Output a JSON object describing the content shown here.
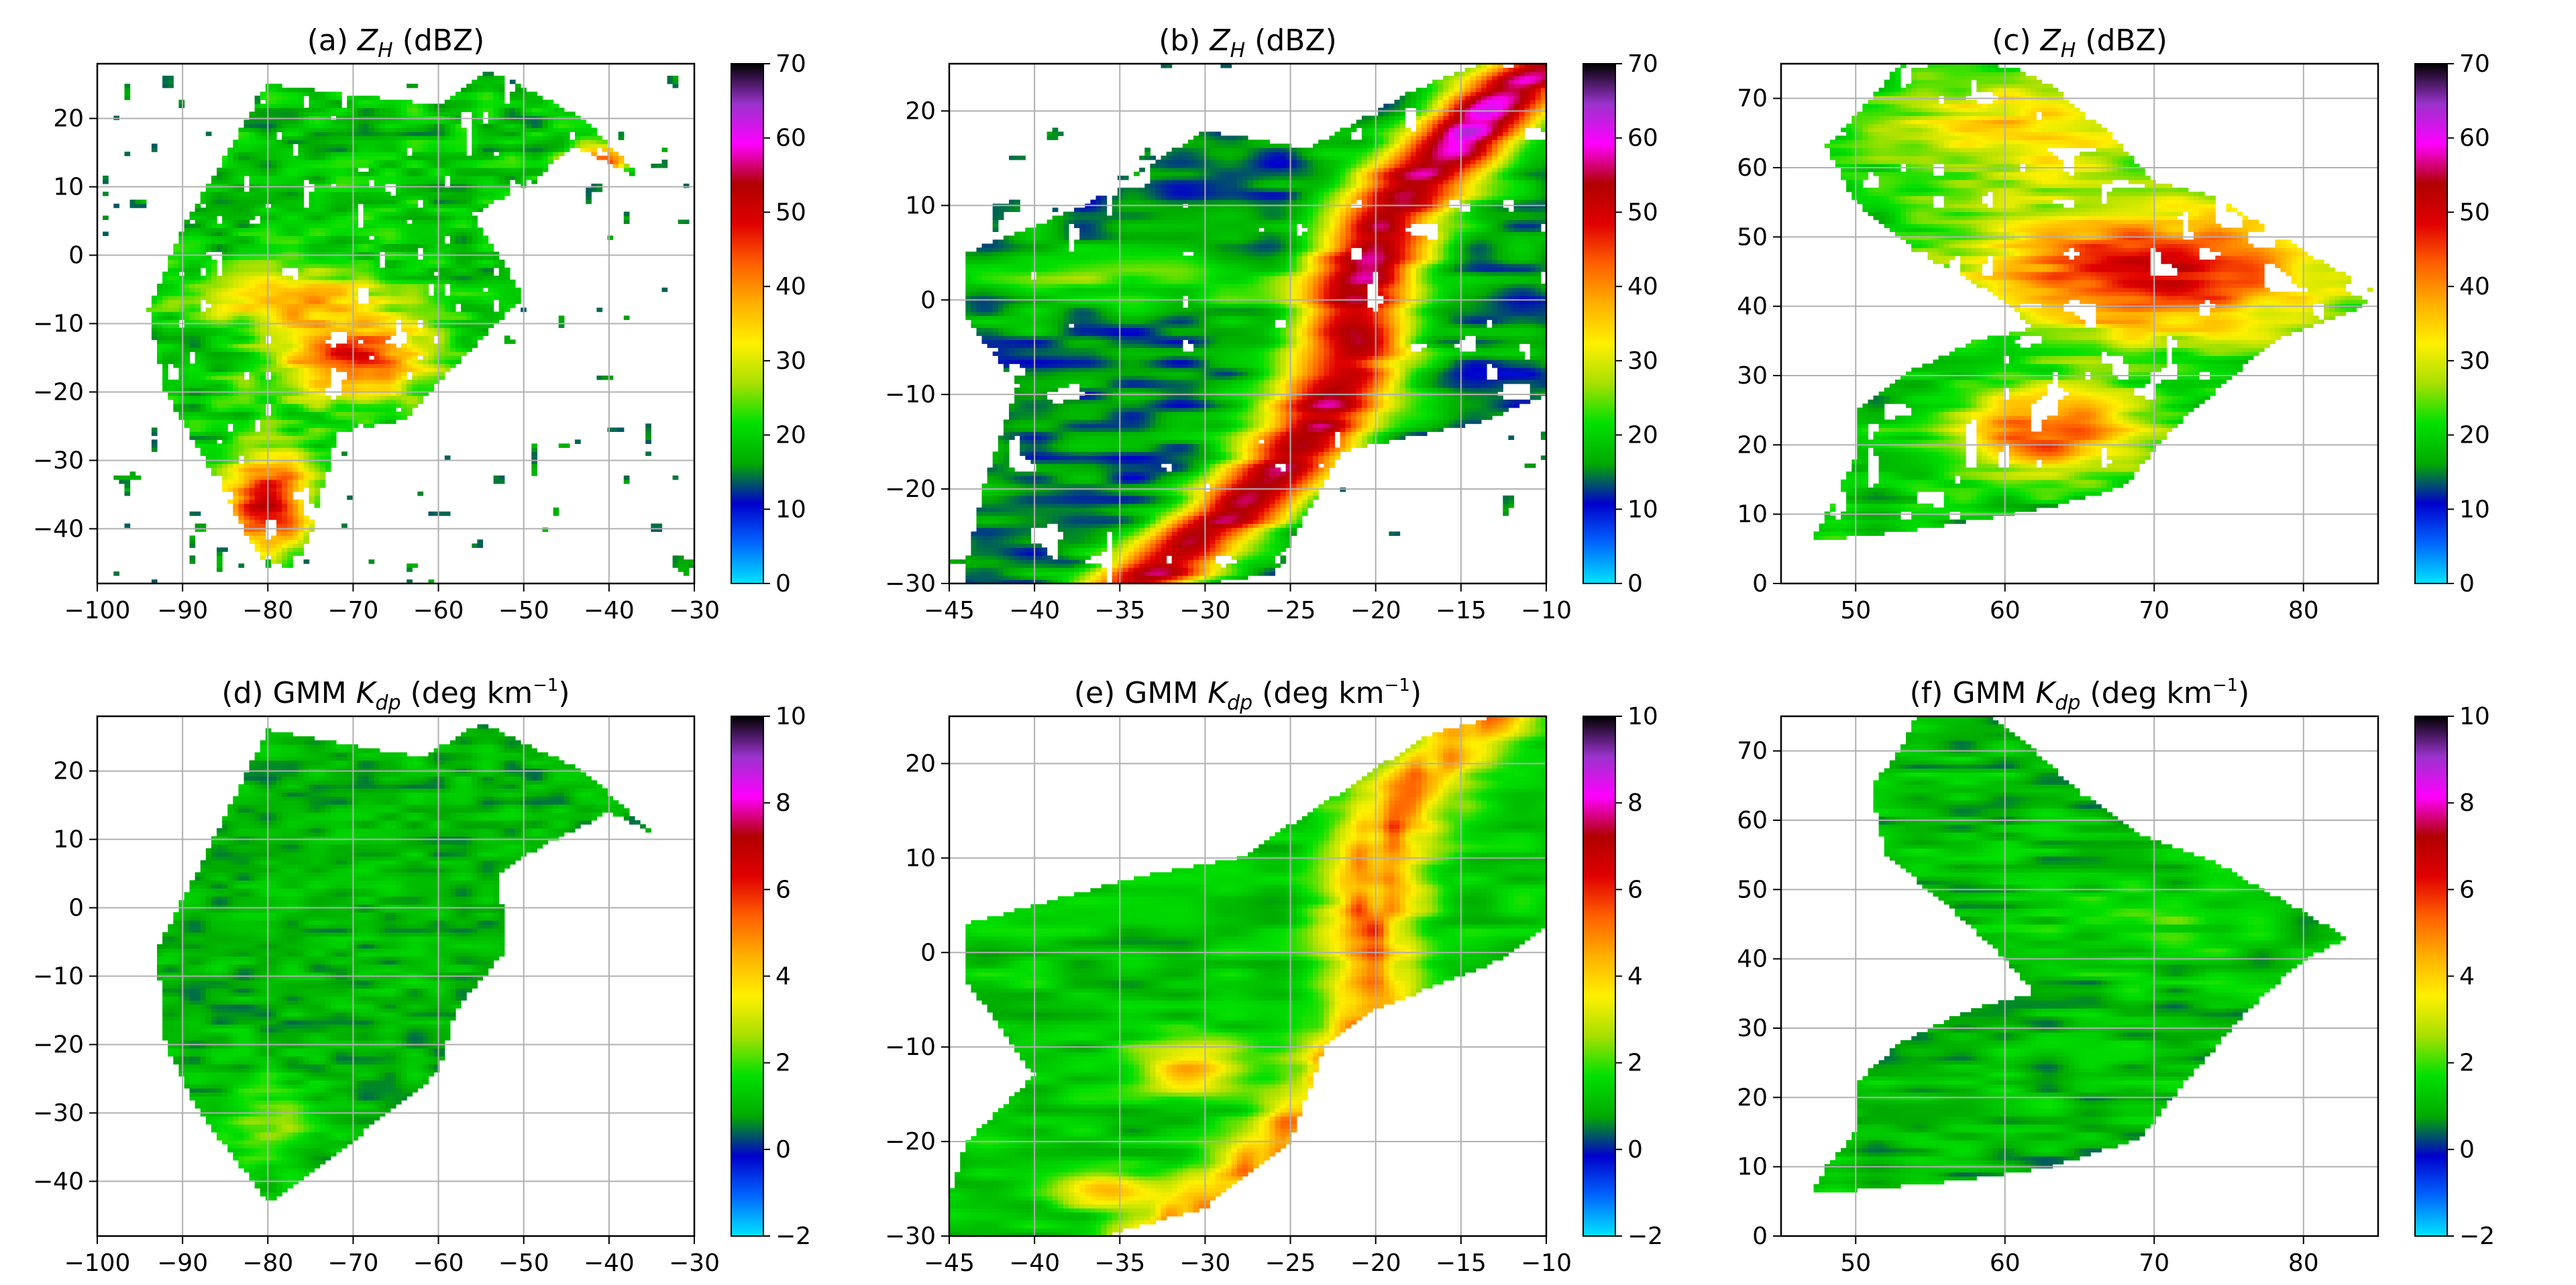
{
  "figure": {
    "colormaps": {
      "zh": [
        "#00e5ff",
        "#0066ff",
        "#0000cc",
        "#00aa00",
        "#00e000",
        "#a8e000",
        "#fff000",
        "#ffb000",
        "#ff6000",
        "#e00000",
        "#b00000",
        "#ff00ff",
        "#9933cc",
        "#000000"
      ],
      "kdp": [
        "#00e5ff",
        "#0066ff",
        "#0000cc",
        "#00aa00",
        "#00e000",
        "#a8e000",
        "#fff000",
        "#ffb000",
        "#ff6000",
        "#e00000",
        "#b00000",
        "#ff00ff",
        "#9933cc",
        "#000000"
      ]
    }
  },
  "chart_data": [
    {
      "id": "a",
      "type": "heatmap",
      "variable": "Z_H",
      "title_prefix": "(a) ",
      "title_symbol": "Z",
      "title_sub": "H",
      "title_suffix": " (dBZ)",
      "title_sup": "",
      "xlim": [
        -100,
        -30
      ],
      "ylim": [
        -48,
        28
      ],
      "xticks": [
        -100,
        -90,
        -80,
        -70,
        -60,
        -50,
        -40,
        -30
      ],
      "yticks": [
        -40,
        -30,
        -20,
        -10,
        0,
        10,
        20
      ],
      "colorbar": {
        "min": 0,
        "max": 70,
        "ticks": [
          0,
          10,
          20,
          30,
          40,
          50,
          60,
          70
        ]
      },
      "grid": true
    },
    {
      "id": "b",
      "type": "heatmap",
      "variable": "Z_H",
      "title_prefix": "(b) ",
      "title_symbol": "Z",
      "title_sub": "H",
      "title_suffix": " (dBZ)",
      "title_sup": "",
      "xlim": [
        -45,
        -10
      ],
      "ylim": [
        -30,
        25
      ],
      "xticks": [
        -45,
        -40,
        -35,
        -30,
        -25,
        -20,
        -15,
        -10
      ],
      "yticks": [
        -30,
        -20,
        -10,
        0,
        10,
        20
      ],
      "colorbar": {
        "min": 0,
        "max": 70,
        "ticks": [
          0,
          10,
          20,
          30,
          40,
          50,
          60,
          70
        ]
      },
      "grid": true
    },
    {
      "id": "c",
      "type": "heatmap",
      "variable": "Z_H",
      "title_prefix": "(c) ",
      "title_symbol": "Z",
      "title_sub": "H",
      "title_suffix": " (dBZ)",
      "title_sup": "",
      "xlim": [
        45,
        85
      ],
      "ylim": [
        0,
        75
      ],
      "xticks": [
        50,
        60,
        70,
        80
      ],
      "yticks": [
        0,
        10,
        20,
        30,
        40,
        50,
        60,
        70
      ],
      "colorbar": {
        "min": 0,
        "max": 70,
        "ticks": [
          0,
          10,
          20,
          30,
          40,
          50,
          60,
          70
        ]
      },
      "grid": true
    },
    {
      "id": "d",
      "type": "heatmap",
      "variable": "K_dp",
      "title_prefix": "(d) GMM ",
      "title_symbol": "K",
      "title_sub": "dp",
      "title_suffix": " (deg km",
      "title_sup": "−1",
      "title_close": ")",
      "xlim": [
        -100,
        -30
      ],
      "ylim": [
        -48,
        28
      ],
      "xticks": [
        -100,
        -90,
        -80,
        -70,
        -60,
        -50,
        -40,
        -30
      ],
      "yticks": [
        -40,
        -30,
        -20,
        -10,
        0,
        10,
        20
      ],
      "colorbar": {
        "min": -2,
        "max": 10,
        "ticks": [
          -2,
          0,
          2,
          4,
          6,
          8,
          10
        ]
      },
      "grid": true
    },
    {
      "id": "e",
      "type": "heatmap",
      "variable": "K_dp",
      "title_prefix": "(e) GMM ",
      "title_symbol": "K",
      "title_sub": "dp",
      "title_suffix": " (deg km",
      "title_sup": "−1",
      "title_close": ")",
      "xlim": [
        -45,
        -10
      ],
      "ylim": [
        -30,
        25
      ],
      "xticks": [
        -45,
        -40,
        -35,
        -30,
        -25,
        -20,
        -15,
        -10
      ],
      "yticks": [
        -30,
        -20,
        -10,
        0,
        10,
        20
      ],
      "colorbar": {
        "min": -2,
        "max": 10,
        "ticks": [
          -2,
          0,
          2,
          4,
          6,
          8,
          10
        ]
      },
      "grid": true
    },
    {
      "id": "f",
      "type": "heatmap",
      "variable": "K_dp",
      "title_prefix": "(f) GMM ",
      "title_symbol": "K",
      "title_sub": "dp",
      "title_suffix": " (deg km",
      "title_sup": "−1",
      "title_close": ")",
      "xlim": [
        45,
        85
      ],
      "ylim": [
        0,
        75
      ],
      "xticks": [
        50,
        60,
        70,
        80
      ],
      "yticks": [
        0,
        10,
        20,
        30,
        40,
        50,
        60,
        70
      ],
      "colorbar": {
        "min": -2,
        "max": 10,
        "ticks": [
          -2,
          0,
          2,
          4,
          6,
          8,
          10
        ]
      },
      "grid": true
    }
  ]
}
